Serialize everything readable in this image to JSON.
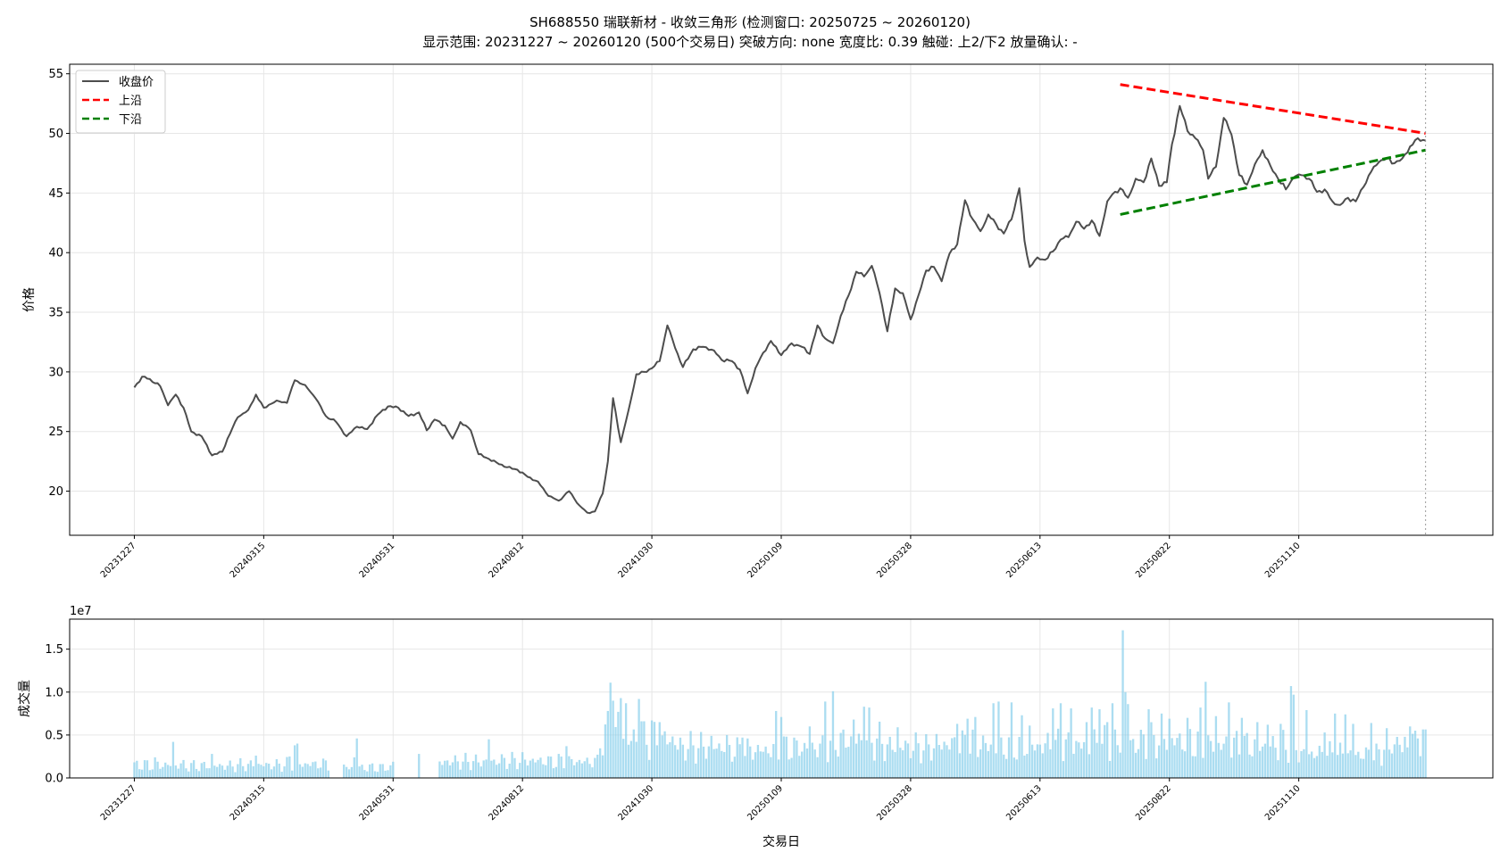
{
  "title_line1": "SH688550 瑞联新材 - 收敛三角形 (检测窗口: 20250725 ~ 20260120)",
  "title_line2": "显示范围: 20231227 ~ 20260120 (500个交易日)  突破方向: none  宽度比: 0.39  触碰: 上2/下2  放量确认: -",
  "colors": {
    "close": "#4d4d4d",
    "upper": "#ff0000",
    "lower": "#008000",
    "volume": "#87ceeb",
    "grid": "#e6e6e6"
  },
  "chart_data": [
    {
      "type": "line",
      "ylabel": "价格",
      "ylim": [
        16.3,
        55.8
      ],
      "yticks": [
        20,
        25,
        30,
        35,
        40,
        45,
        50,
        55
      ],
      "xlim": [
        -25,
        525
      ],
      "xtick_positions": [
        0,
        50,
        100,
        150,
        200,
        250,
        300,
        350,
        400,
        450
      ],
      "xtick_labels": [
        "20231227",
        "20240315",
        "20240531",
        "20240812",
        "20241030",
        "20250109",
        "20250328",
        "20250613",
        "20250822",
        "20251110"
      ],
      "legend": [
        "收盘价",
        "上沿",
        "下沿"
      ],
      "legend_position": "upper-left",
      "grid": true,
      "close_anchors": [
        [
          0,
          28.7
        ],
        [
          3,
          29.6
        ],
        [
          6,
          29.4
        ],
        [
          10,
          28.8
        ],
        [
          13,
          27.2
        ],
        [
          16,
          28.1
        ],
        [
          19,
          27.0
        ],
        [
          22,
          25.0
        ],
        [
          26,
          24.6
        ],
        [
          30,
          23.0
        ],
        [
          34,
          23.3
        ],
        [
          36,
          24.4
        ],
        [
          40,
          26.2
        ],
        [
          44,
          26.8
        ],
        [
          47,
          28.1
        ],
        [
          50,
          27.0
        ],
        [
          55,
          27.6
        ],
        [
          59,
          27.4
        ],
        [
          62,
          29.3
        ],
        [
          66,
          28.9
        ],
        [
          70,
          27.8
        ],
        [
          74,
          26.3
        ],
        [
          78,
          25.8
        ],
        [
          82,
          24.6
        ],
        [
          86,
          25.4
        ],
        [
          90,
          25.2
        ],
        [
          94,
          26.4
        ],
        [
          98,
          27.1
        ],
        [
          102,
          27.0
        ],
        [
          106,
          26.3
        ],
        [
          110,
          26.6
        ],
        [
          113,
          25.1
        ],
        [
          116,
          26.0
        ],
        [
          120,
          25.5
        ],
        [
          123,
          24.4
        ],
        [
          126,
          25.8
        ],
        [
          130,
          25.1
        ],
        [
          133,
          23.1
        ],
        [
          136,
          22.8
        ],
        [
          140,
          22.4
        ],
        [
          144,
          22.0
        ],
        [
          148,
          21.8
        ],
        [
          152,
          21.2
        ],
        [
          156,
          20.8
        ],
        [
          160,
          19.6
        ],
        [
          164,
          19.2
        ],
        [
          168,
          20.0
        ],
        [
          172,
          18.8
        ],
        [
          175,
          18.2
        ],
        [
          178,
          18.3
        ],
        [
          181,
          19.8
        ],
        [
          183,
          22.5
        ],
        [
          185,
          27.8
        ],
        [
          188,
          24.1
        ],
        [
          191,
          26.8
        ],
        [
          194,
          29.8
        ],
        [
          197,
          30.0
        ],
        [
          200,
          30.3
        ],
        [
          203,
          30.9
        ],
        [
          206,
          33.9
        ],
        [
          209,
          32.0
        ],
        [
          212,
          30.4
        ],
        [
          216,
          31.9
        ],
        [
          220,
          32.1
        ],
        [
          224,
          31.8
        ],
        [
          227,
          31.0
        ],
        [
          231,
          30.9
        ],
        [
          234,
          30.2
        ],
        [
          237,
          28.2
        ],
        [
          240,
          30.3
        ],
        [
          243,
          31.6
        ],
        [
          246,
          32.6
        ],
        [
          250,
          31.4
        ],
        [
          254,
          32.4
        ],
        [
          258,
          32.1
        ],
        [
          261,
          31.5
        ],
        [
          264,
          33.9
        ],
        [
          267,
          32.8
        ],
        [
          270,
          32.4
        ],
        [
          273,
          34.7
        ],
        [
          276,
          36.4
        ],
        [
          279,
          38.4
        ],
        [
          282,
          38.0
        ],
        [
          285,
          38.9
        ],
        [
          288,
          36.6
        ],
        [
          291,
          33.4
        ],
        [
          294,
          37.0
        ],
        [
          297,
          36.6
        ],
        [
          300,
          34.4
        ],
        [
          303,
          36.4
        ],
        [
          306,
          38.5
        ],
        [
          309,
          38.8
        ],
        [
          312,
          37.6
        ],
        [
          315,
          39.9
        ],
        [
          318,
          40.7
        ],
        [
          321,
          44.4
        ],
        [
          324,
          42.8
        ],
        [
          327,
          41.8
        ],
        [
          330,
          43.2
        ],
        [
          333,
          42.4
        ],
        [
          336,
          41.6
        ],
        [
          339,
          42.8
        ],
        [
          342,
          45.4
        ],
        [
          344,
          41.0
        ],
        [
          346,
          38.8
        ],
        [
          349,
          39.6
        ],
        [
          352,
          39.4
        ],
        [
          355,
          40.1
        ],
        [
          358,
          41.1
        ],
        [
          361,
          41.3
        ],
        [
          364,
          42.6
        ],
        [
          367,
          42.0
        ],
        [
          370,
          42.7
        ],
        [
          373,
          41.4
        ],
        [
          376,
          44.3
        ],
        [
          378,
          44.9
        ],
        [
          381,
          45.4
        ],
        [
          384,
          44.6
        ],
        [
          387,
          46.2
        ],
        [
          390,
          45.9
        ],
        [
          393,
          47.9
        ],
        [
          396,
          45.6
        ],
        [
          399,
          45.9
        ],
        [
          401,
          49.1
        ],
        [
          404,
          52.3
        ],
        [
          407,
          50.2
        ],
        [
          410,
          49.6
        ],
        [
          413,
          48.6
        ],
        [
          415,
          46.2
        ],
        [
          418,
          47.2
        ],
        [
          421,
          51.3
        ],
        [
          424,
          49.9
        ],
        [
          427,
          46.5
        ],
        [
          430,
          45.7
        ],
        [
          433,
          47.4
        ],
        [
          436,
          48.6
        ],
        [
          439,
          47.3
        ],
        [
          442,
          46.2
        ],
        [
          445,
          45.3
        ],
        [
          448,
          46.3
        ],
        [
          451,
          46.5
        ],
        [
          454,
          46.2
        ],
        [
          457,
          45.1
        ],
        [
          460,
          45.3
        ],
        [
          463,
          44.3
        ],
        [
          466,
          44.0
        ],
        [
          469,
          44.6
        ],
        [
          472,
          44.3
        ],
        [
          475,
          45.5
        ],
        [
          478,
          46.8
        ],
        [
          481,
          47.6
        ],
        [
          484,
          47.9
        ],
        [
          487,
          47.5
        ],
        [
          490,
          47.9
        ],
        [
          493,
          48.9
        ],
        [
          496,
          49.6
        ],
        [
          499,
          49.4
        ]
      ],
      "upper_edge": {
        "name": "上沿",
        "x": [
          381,
          499
        ],
        "y": [
          54.1,
          50.0
        ]
      },
      "lower_edge": {
        "name": "下沿",
        "x": [
          381,
          499
        ],
        "y": [
          43.2,
          48.6
        ]
      },
      "vline_x": 499
    },
    {
      "type": "bar",
      "ylabel": "成交量",
      "xlabel": "交易日",
      "ylim": [
        0,
        18500000.0
      ],
      "yticks": [
        0,
        5000000,
        10000000,
        15000000
      ],
      "ytick_labels": [
        "0.0",
        "0.5",
        "1.0",
        "1.5"
      ],
      "offset_text": "1e7",
      "xtick_positions": [
        0,
        50,
        100,
        150,
        200,
        250,
        300,
        350,
        400,
        450
      ],
      "xtick_labels": [
        "20231227",
        "20240315",
        "20240531",
        "20240812",
        "20241030",
        "20250109",
        "20250328",
        "20250613",
        "20250822",
        "20251110"
      ],
      "grid": true,
      "volume_bands": [
        [
          0,
          19,
          1500000
        ],
        [
          20,
          39,
          1400000
        ],
        [
          40,
          58,
          1500000
        ],
        [
          59,
          78,
          1600000
        ],
        [
          79,
          99,
          1200000
        ],
        [
          100,
          119,
          1700000
        ],
        [
          120,
          139,
          1900000
        ],
        [
          140,
          159,
          2000000
        ],
        [
          160,
          179,
          1900000
        ],
        [
          180,
          189,
          4800000
        ],
        [
          190,
          209,
          4400000
        ],
        [
          210,
          229,
          3600000
        ],
        [
          230,
          249,
          3200000
        ],
        [
          250,
          269,
          3500000
        ],
        [
          270,
          289,
          4300000
        ],
        [
          290,
          309,
          3600000
        ],
        [
          310,
          329,
          3900000
        ],
        [
          330,
          349,
          3600000
        ],
        [
          350,
          369,
          3800000
        ],
        [
          370,
          389,
          4000000
        ],
        [
          390,
          409,
          4300000
        ],
        [
          410,
          429,
          3800000
        ],
        [
          430,
          449,
          3700000
        ],
        [
          450,
          469,
          2800000
        ],
        [
          470,
          482,
          2700000
        ],
        [
          483,
          499,
          4100000
        ]
      ],
      "volume_gaps": [
        [
          76,
          80
        ],
        [
          101,
          117
        ]
      ],
      "volume_spikes": [
        [
          1,
          2000000
        ],
        [
          8,
          2400000
        ],
        [
          15,
          4200000
        ],
        [
          30,
          2800000
        ],
        [
          47,
          2600000
        ],
        [
          60,
          2500000
        ],
        [
          62,
          3800000
        ],
        [
          63,
          4000000
        ],
        [
          85,
          2400000
        ],
        [
          86,
          4600000
        ],
        [
          110,
          2800000
        ],
        [
          137,
          4500000
        ],
        [
          150,
          3000000
        ],
        [
          164,
          2800000
        ],
        [
          167,
          3700000
        ],
        [
          183,
          7800000
        ],
        [
          184,
          11100000
        ],
        [
          185,
          9000000
        ],
        [
          187,
          7700000
        ],
        [
          188,
          9300000
        ],
        [
          190,
          8700000
        ],
        [
          195,
          9200000
        ],
        [
          196,
          6600000
        ],
        [
          200,
          6700000
        ],
        [
          203,
          6500000
        ],
        [
          223,
          4900000
        ],
        [
          229,
          5000000
        ],
        [
          235,
          4700000
        ],
        [
          248,
          7800000
        ],
        [
          250,
          7100000
        ],
        [
          261,
          6000000
        ],
        [
          267,
          8900000
        ],
        [
          270,
          10100000
        ],
        [
          278,
          6800000
        ],
        [
          282,
          8300000
        ],
        [
          284,
          8200000
        ],
        [
          295,
          5900000
        ],
        [
          306,
          5100000
        ],
        [
          318,
          6300000
        ],
        [
          322,
          6900000
        ],
        [
          325,
          7100000
        ],
        [
          332,
          8700000
        ],
        [
          334,
          8900000
        ],
        [
          339,
          8800000
        ],
        [
          343,
          7300000
        ],
        [
          346,
          6100000
        ],
        [
          355,
          8100000
        ],
        [
          358,
          8700000
        ],
        [
          362,
          8100000
        ],
        [
          368,
          6500000
        ],
        [
          370,
          8200000
        ],
        [
          373,
          8000000
        ],
        [
          376,
          6500000
        ],
        [
          378,
          8700000
        ],
        [
          382,
          17200000
        ],
        [
          383,
          10000000
        ],
        [
          384,
          8600000
        ],
        [
          392,
          8000000
        ],
        [
          397,
          7500000
        ],
        [
          400,
          6900000
        ],
        [
          407,
          7000000
        ],
        [
          412,
          8200000
        ],
        [
          414,
          11200000
        ],
        [
          418,
          7200000
        ],
        [
          423,
          8800000
        ],
        [
          428,
          7000000
        ],
        [
          434,
          6500000
        ],
        [
          438,
          6200000
        ],
        [
          443,
          6300000
        ],
        [
          447,
          10700000
        ],
        [
          448,
          9700000
        ],
        [
          453,
          7900000
        ],
        [
          460,
          5300000
        ],
        [
          464,
          7500000
        ],
        [
          468,
          7400000
        ],
        [
          471,
          6300000
        ],
        [
          478,
          6400000
        ],
        [
          485,
          3300000
        ],
        [
          490,
          3000000
        ],
        [
          493,
          6000000
        ],
        [
          496,
          4600000
        ]
      ]
    }
  ]
}
